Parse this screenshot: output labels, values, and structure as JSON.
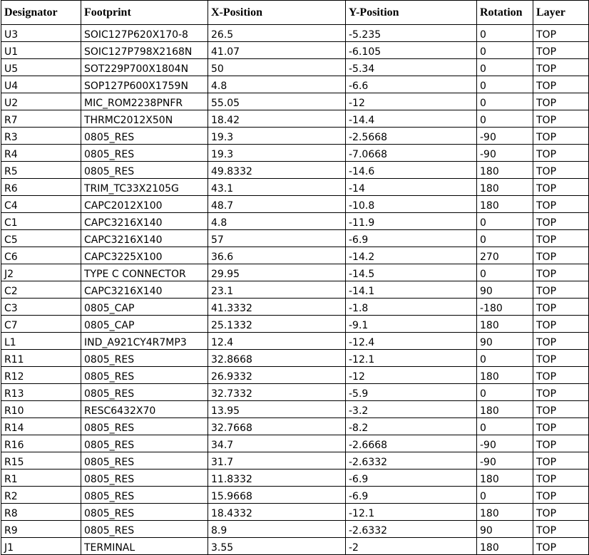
{
  "table": {
    "headers": [
      "Designator",
      "Footprint",
      "X-Position",
      "Y-Position",
      "Rotation",
      "Layer"
    ],
    "rows": [
      [
        "U3",
        "SOIC127P620X170-8",
        "26.5",
        "-5.235",
        "0",
        "TOP"
      ],
      [
        "U1",
        "SOIC127P798X2168N",
        "41.07",
        "-6.105",
        "0",
        "TOP"
      ],
      [
        "U5",
        "SOT229P700X1804N",
        "50",
        "-5.34",
        "0",
        "TOP"
      ],
      [
        "U4",
        "SOP127P600X1759N",
        "4.8",
        "-6.6",
        "0",
        "TOP"
      ],
      [
        "U2",
        "MIC_ROM2238PNFR",
        "55.05",
        "-12",
        "0",
        "TOP"
      ],
      [
        "R7",
        "THRMC2012X50N",
        "18.42",
        "-14.4",
        "0",
        "TOP"
      ],
      [
        "R3",
        "0805_RES",
        "19.3",
        "-2.5668",
        "-90",
        "TOP"
      ],
      [
        "R4",
        "0805_RES",
        "19.3",
        "-7.0668",
        "-90",
        "TOP"
      ],
      [
        "R5",
        "0805_RES",
        "49.8332",
        "-14.6",
        "180",
        "TOP"
      ],
      [
        "R6",
        "TRIM_TC33X2105G",
        "43.1",
        "-14",
        "180",
        "TOP"
      ],
      [
        "C4",
        "CAPC2012X100",
        "48.7",
        "-10.8",
        "180",
        "TOP"
      ],
      [
        "C1",
        "CAPC3216X140",
        "4.8",
        "-11.9",
        "0",
        "TOP"
      ],
      [
        "C5",
        "CAPC3216X140",
        "57",
        "-6.9",
        "0",
        "TOP"
      ],
      [
        "C6",
        "CAPC3225X100",
        "36.6",
        "-14.2",
        "270",
        "TOP"
      ],
      [
        "J2",
        "TYPE C CONNECTOR",
        "29.95",
        "-14.5",
        "0",
        "TOP"
      ],
      [
        "C2",
        "CAPC3216X140",
        "23.1",
        "-14.1",
        "90",
        "TOP"
      ],
      [
        "C3",
        "0805_CAP",
        "41.3332",
        "-1.8",
        "-180",
        "TOP"
      ],
      [
        "C7",
        "0805_CAP",
        "25.1332",
        "-9.1",
        "180",
        "TOP"
      ],
      [
        "L1",
        "IND_A921CY4R7MP3",
        "12.4",
        "-12.4",
        "90",
        "TOP"
      ],
      [
        "R11",
        "0805_RES",
        "32.8668",
        "-12.1",
        "0",
        "TOP"
      ],
      [
        "R12",
        "0805_RES",
        "26.9332",
        "-12",
        "180",
        "TOP"
      ],
      [
        "R13",
        "0805_RES",
        "32.7332",
        "-5.9",
        "0",
        "TOP"
      ],
      [
        "R10",
        "RESC6432X70",
        "13.95",
        "-3.2",
        "180",
        "TOP"
      ],
      [
        "R14",
        "0805_RES",
        "32.7668",
        "-8.2",
        "0",
        "TOP"
      ],
      [
        "R16",
        "0805_RES",
        "34.7",
        "-2.6668",
        "-90",
        "TOP"
      ],
      [
        "R15",
        "0805_RES",
        "31.7",
        "-2.6332",
        "-90",
        "TOP"
      ],
      [
        "R1",
        "0805_RES",
        "11.8332",
        "-6.9",
        "180",
        "TOP"
      ],
      [
        "R2",
        "0805_RES",
        "15.9668",
        "-6.9",
        "0",
        "TOP"
      ],
      [
        "R8",
        "0805_RES",
        "18.4332",
        "-12.1",
        "180",
        "TOP"
      ],
      [
        "R9",
        "0805_RES",
        "8.9",
        "-2.6332",
        "90",
        "TOP"
      ],
      [
        "J1",
        "TERMINAL",
        "3.55",
        "-2",
        "180",
        "TOP"
      ]
    ]
  }
}
